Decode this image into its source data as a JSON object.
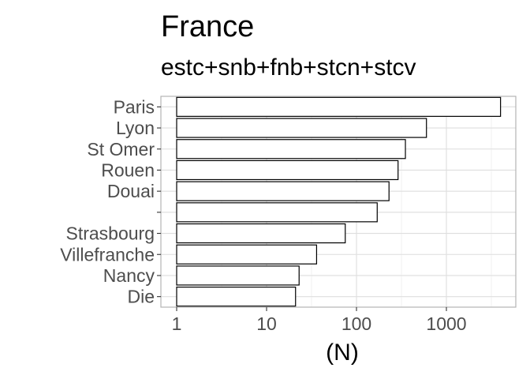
{
  "chart_data": {
    "type": "bar",
    "orientation": "horizontal",
    "title": "France",
    "subtitle": "estc+snb+fnb+stcn+stcv",
    "xlabel": "(N)",
    "ylabel": "",
    "x_scale": "log10",
    "xlim": [
      0.8,
      6000
    ],
    "x_ticks": [
      1,
      10,
      100,
      1000
    ],
    "x_tick_labels": [
      "1",
      "10",
      "100",
      "1000"
    ],
    "grid": true,
    "legend": "none",
    "categories": [
      "Paris",
      "Lyon",
      "St Omer",
      "Rouen",
      "Douai",
      "",
      "Strasbourg",
      "Villefranche",
      "Nancy",
      "Die"
    ],
    "values": [
      4000,
      600,
      350,
      290,
      230,
      170,
      75,
      36,
      23,
      21
    ]
  },
  "colors": {
    "bar_fill": "#ffffff",
    "bar_outline": "#000000",
    "grid": "#dedede",
    "tick_text": "#4d4d4d"
  }
}
